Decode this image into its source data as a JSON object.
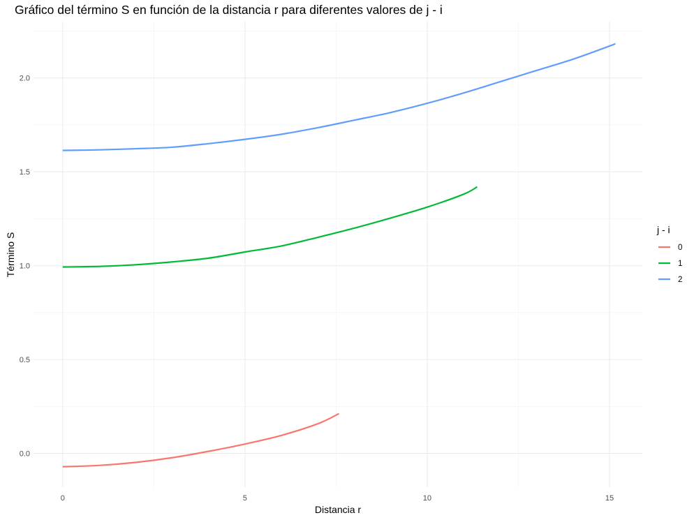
{
  "chart_data": {
    "type": "line",
    "title": "Gráfico del término S en función de la distancia r para diferentes valores de j - i",
    "xlabel": "Distancia r",
    "ylabel": "Término S",
    "xlim": [
      -0.8,
      15.9
    ],
    "ylim": [
      -0.18,
      2.3
    ],
    "x_ticks": [
      0,
      5,
      10,
      15
    ],
    "x_tick_labels": [
      "0",
      "5",
      "10",
      "15"
    ],
    "y_ticks": [
      0.0,
      0.5,
      1.0,
      1.5,
      2.0
    ],
    "y_tick_labels": [
      "0.0",
      "0.5",
      "1.0",
      "1.5",
      "2.0"
    ],
    "grid": true,
    "legend": {
      "title": "j - i",
      "position": "right"
    },
    "series": [
      {
        "name": "0",
        "color": "#F8766D",
        "x": [
          0,
          1,
          2,
          3,
          4,
          5,
          6,
          7,
          7.58
        ],
        "y": [
          -0.071,
          -0.064,
          -0.048,
          -0.023,
          0.011,
          0.05,
          0.096,
          0.158,
          0.212
        ]
      },
      {
        "name": "1",
        "color": "#00BA38",
        "x": [
          0,
          1,
          2,
          3,
          4,
          5,
          6,
          7,
          8,
          9,
          10,
          11,
          11.37
        ],
        "y": [
          0.993,
          0.996,
          1.005,
          1.02,
          1.04,
          1.073,
          1.105,
          1.151,
          1.2,
          1.254,
          1.312,
          1.381,
          1.42
        ]
      },
      {
        "name": "2",
        "color": "#619CFF",
        "x": [
          0,
          1,
          2,
          3,
          4,
          5,
          6,
          7,
          8,
          9,
          10,
          11,
          12,
          13,
          14,
          15,
          15.16
        ],
        "y": [
          1.614,
          1.617,
          1.623,
          1.631,
          1.65,
          1.673,
          1.7,
          1.735,
          1.775,
          1.816,
          1.865,
          1.92,
          1.98,
          2.04,
          2.1,
          2.17,
          2.183
        ]
      }
    ]
  }
}
